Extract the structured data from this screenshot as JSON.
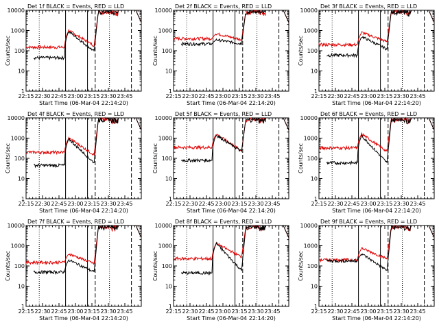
{
  "chart_data": {
    "type": "line",
    "grid": false,
    "legend": "none",
    "common": {
      "x_tick_labels": [
        "22:15",
        "22:30",
        "22:45",
        "23:00",
        "23:15",
        "23:30",
        "23:45"
      ],
      "x_range_minutes": [
        0,
        105
      ],
      "y_ticks": [
        1,
        10,
        100,
        1000,
        10000
      ],
      "y_tick_labels": [
        "1",
        "10",
        "100",
        "1000",
        "10000"
      ],
      "ylabel": "Counts/sec",
      "xlabel": "Start Time (06-Mar-04 22:14:20)",
      "yscale": "log",
      "ylim": [
        1,
        10000
      ],
      "colors": {
        "events": "#000000",
        "lld": "#e00000"
      },
      "vlines": [
        {
          "at": 12,
          "style": "dotted"
        },
        {
          "at": 36,
          "style": "solid"
        },
        {
          "at": 56,
          "style": "solid"
        },
        {
          "at": 63,
          "style": "dashed"
        },
        {
          "at": 76,
          "style": "dotted"
        },
        {
          "at": 96,
          "style": "dashed"
        }
      ]
    },
    "panels": [
      {
        "title": "Det 1f BLACK = Events, RED = LLD",
        "events_base": 45,
        "lld_base": 150,
        "peak_events": 900,
        "peak_lld": 1000,
        "ev_end": 95,
        "lld_end": 180
      },
      {
        "title": "Det 2f BLACK = Events, RED = LLD",
        "events_base": 220,
        "lld_base": 400,
        "peak_events": 350,
        "peak_lld": 700,
        "ev_end": 220,
        "lld_end": 350
      },
      {
        "title": "Det 3f BLACK = Events, RED = LLD",
        "events_base": 60,
        "lld_base": 200,
        "peak_events": 500,
        "peak_lld": 800,
        "ev_end": 120,
        "lld_end": 280
      },
      {
        "title": "Det 4f BLACK = Events, RED = LLD",
        "events_base": 45,
        "lld_base": 200,
        "peak_events": 900,
        "peak_lld": 1000,
        "ev_end": 60,
        "lld_end": 150
      },
      {
        "title": "Det 5f BLACK = Events, RED = LLD",
        "events_base": 80,
        "lld_base": 350,
        "peak_events": 1400,
        "peak_lld": 1600,
        "ev_end": 220,
        "lld_end": 240
      },
      {
        "title": "Det 6f BLACK = Events, RED = LLD",
        "events_base": 60,
        "lld_base": 330,
        "peak_events": 1300,
        "peak_lld": 1600,
        "ev_end": 60,
        "lld_end": 220
      },
      {
        "title": "Det 7f BLACK = Events, RED = LLD",
        "events_base": 50,
        "lld_base": 150,
        "peak_events": 200,
        "peak_lld": 400,
        "ev_end": 50,
        "lld_end": 130
      },
      {
        "title": "Det 8f BLACK = Events, RED = LLD",
        "events_base": 45,
        "lld_base": 230,
        "peak_events": 1300,
        "peak_lld": 1300,
        "ev_end": 60,
        "lld_end": 280
      },
      {
        "title": "Det 9f BLACK = Events, RED = LLD",
        "events_base": 180,
        "lld_base": 200,
        "peak_events": 400,
        "peak_lld": 750,
        "ev_end": 60,
        "lld_end": 230
      }
    ]
  }
}
